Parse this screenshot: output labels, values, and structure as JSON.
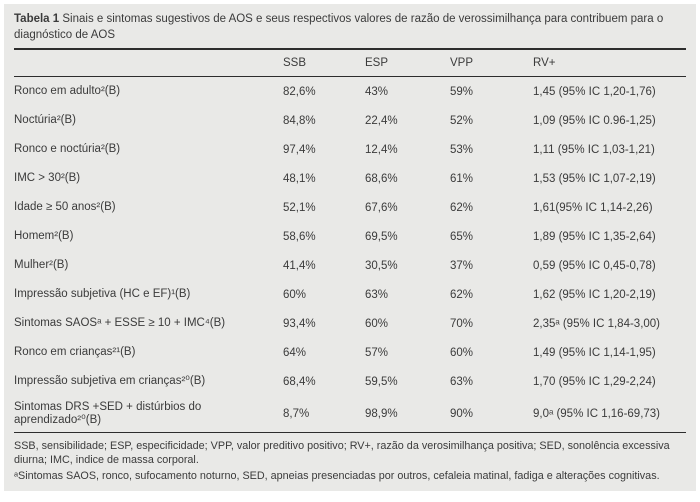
{
  "table": {
    "title_bold": "Tabela 1",
    "title_rest": " Sinais e sintomas sugestivos de AOS e seus respectivos valores de razão de verossimilhança para contribuem para o diagnóstico de AOS",
    "columns": [
      "SSB",
      "ESP",
      "VPP",
      "RV+"
    ],
    "rows": [
      {
        "label": "Ronco em adulto²(B)",
        "ssb": "82,6%",
        "esp": "43%",
        "vpp": "59%",
        "rv": "1,45 (95% IC 1,20-1,76)"
      },
      {
        "label": "Noctúria²(B)",
        "ssb": "84,8%",
        "esp": "22,4%",
        "vpp": "52%",
        "rv": "1,09 (95% IC 0.96-1,25)"
      },
      {
        "label": "Ronco e noctúria²(B)",
        "ssb": "97,4%",
        "esp": "12,4%",
        "vpp": "53%",
        "rv": "1,11 (95% IC 1,03-1,21)"
      },
      {
        "label": "IMC > 30²(B)",
        "ssb": "48,1%",
        "esp": "68,6%",
        "vpp": "61%",
        "rv": "1,53 (95% IC 1,07-2,19)"
      },
      {
        "label": "Idade ≥ 50 anos²(B)",
        "ssb": "52,1%",
        "esp": "67,6%",
        "vpp": "62%",
        "rv": "1,61(95% IC 1,14-2,26)"
      },
      {
        "label": "Homem²(B)",
        "ssb": "58,6%",
        "esp": "69,5%",
        "vpp": "65%",
        "rv": "1,89 (95% IC 1,35-2,64)"
      },
      {
        "label": "Mulher²(B)",
        "ssb": "41,4%",
        "esp": "30,5%",
        "vpp": "37%",
        "rv": "0,59 (95% IC 0,45-0,78)"
      },
      {
        "label": "Impressão subjetiva (HC e EF)¹(B)",
        "ssb": "60%",
        "esp": "63%",
        "vpp": "62%",
        "rv": "1,62 (95% IC 1,20-2,19)"
      },
      {
        "label": "Sintomas SAOSᵃ + ESSE ≥ 10 + IMC⁴(B)",
        "ssb": "93,4%",
        "esp": "60%",
        "vpp": "70%",
        "rv": "2,35ᵃ (95% IC 1,84-3,00)"
      },
      {
        "label": "Ronco em crianças²¹(B)",
        "ssb": "64%",
        "esp": "57%",
        "vpp": "60%",
        "rv": "1,49 (95% IC 1,14-1,95)"
      },
      {
        "label": "Impressão subjetiva em crianças²⁰(B)",
        "ssb": "68,4%",
        "esp": "59,5%",
        "vpp": "63%",
        "rv": "1,70 (95% IC 1,29-2,24)"
      },
      {
        "label": "Sintomas DRS +SED + distúrbios do aprendizado²⁰(B)",
        "ssb": "8,7%",
        "esp": "98,9%",
        "vpp": "90%",
        "rv": "9,0ᵃ (95% IC 1,16-69,73)"
      }
    ],
    "footnotes": [
      "SSB, sensibilidade; ESP, especificidade; VPP, valor preditivo positivo; RV+, razão da verosimilhança positiva; SED, sonolência excessiva diurna; IMC, indice de massa corporal.",
      "ᵃSintomas SAOS, ronco, sufocamento noturno, SED, apneias presenciadas por outros, cefaleia matinal, fadiga e alterações cognitivas."
    ]
  },
  "colors": {
    "panel_bg": "#e9e9e7",
    "text": "#3b3b3b",
    "rule": "#2d2d2d"
  }
}
